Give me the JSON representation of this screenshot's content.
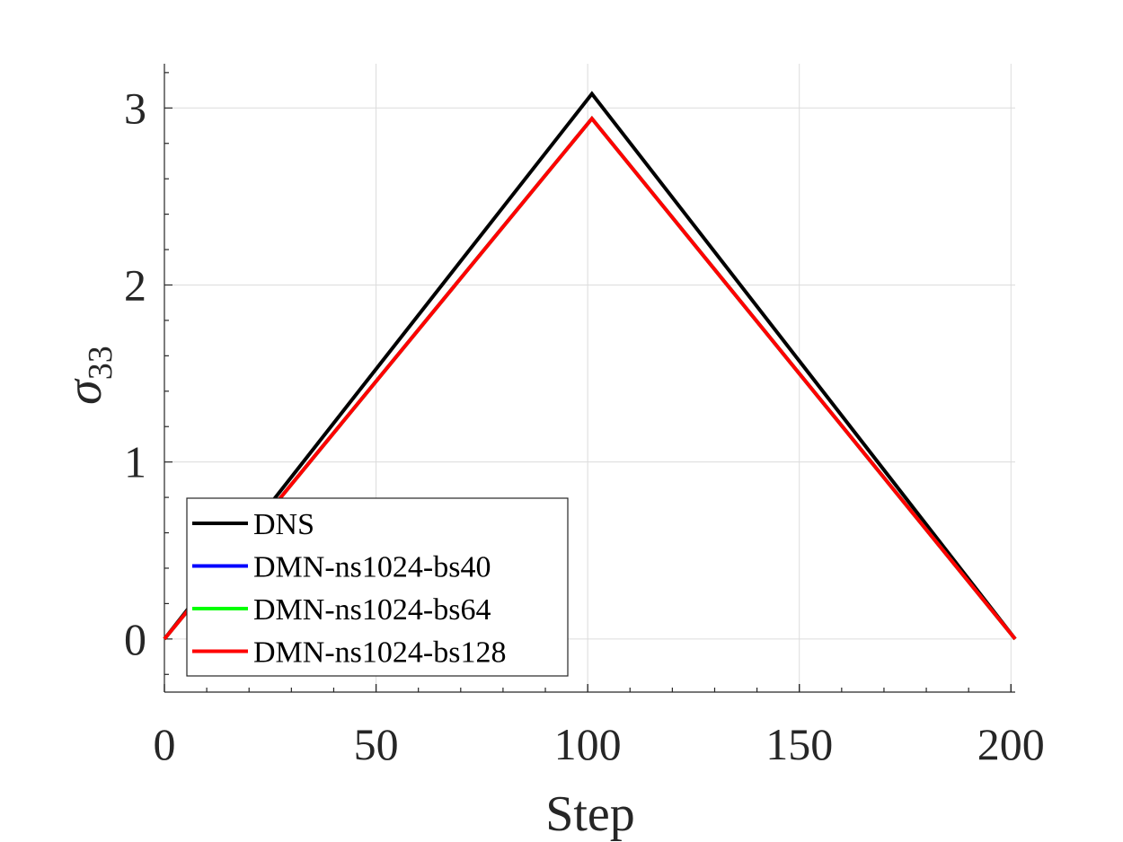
{
  "chart_data": {
    "type": "line",
    "xlabel": "Step",
    "ylabel_base": "σ",
    "ylabel_sub": "33",
    "xlim": [
      0,
      201
    ],
    "ylim": [
      -0.3,
      3.25
    ],
    "xticks": [
      0,
      50,
      100,
      150,
      200
    ],
    "yticks": [
      0,
      1,
      2,
      3
    ],
    "x_minor_step": 10,
    "y_minor_step": 0.2,
    "grid": true,
    "legend_position": "bottom-left",
    "series": [
      {
        "name": "DNS",
        "color": "#000000",
        "x": [
          0,
          101,
          201
        ],
        "y": [
          0,
          3.08,
          0
        ]
      },
      {
        "name": "DMN-ns1024-bs40",
        "color": "#0000ff",
        "x": [
          0,
          101,
          201
        ],
        "y": [
          0,
          2.94,
          0
        ]
      },
      {
        "name": "DMN-ns1024-bs64",
        "color": "#00ff00",
        "x": [
          0,
          101,
          201
        ],
        "y": [
          0,
          2.94,
          0
        ]
      },
      {
        "name": "DMN-ns1024-bs128",
        "color": "#ff0000",
        "x": [
          0,
          101,
          201
        ],
        "y": [
          0,
          2.94,
          0
        ]
      }
    ]
  }
}
